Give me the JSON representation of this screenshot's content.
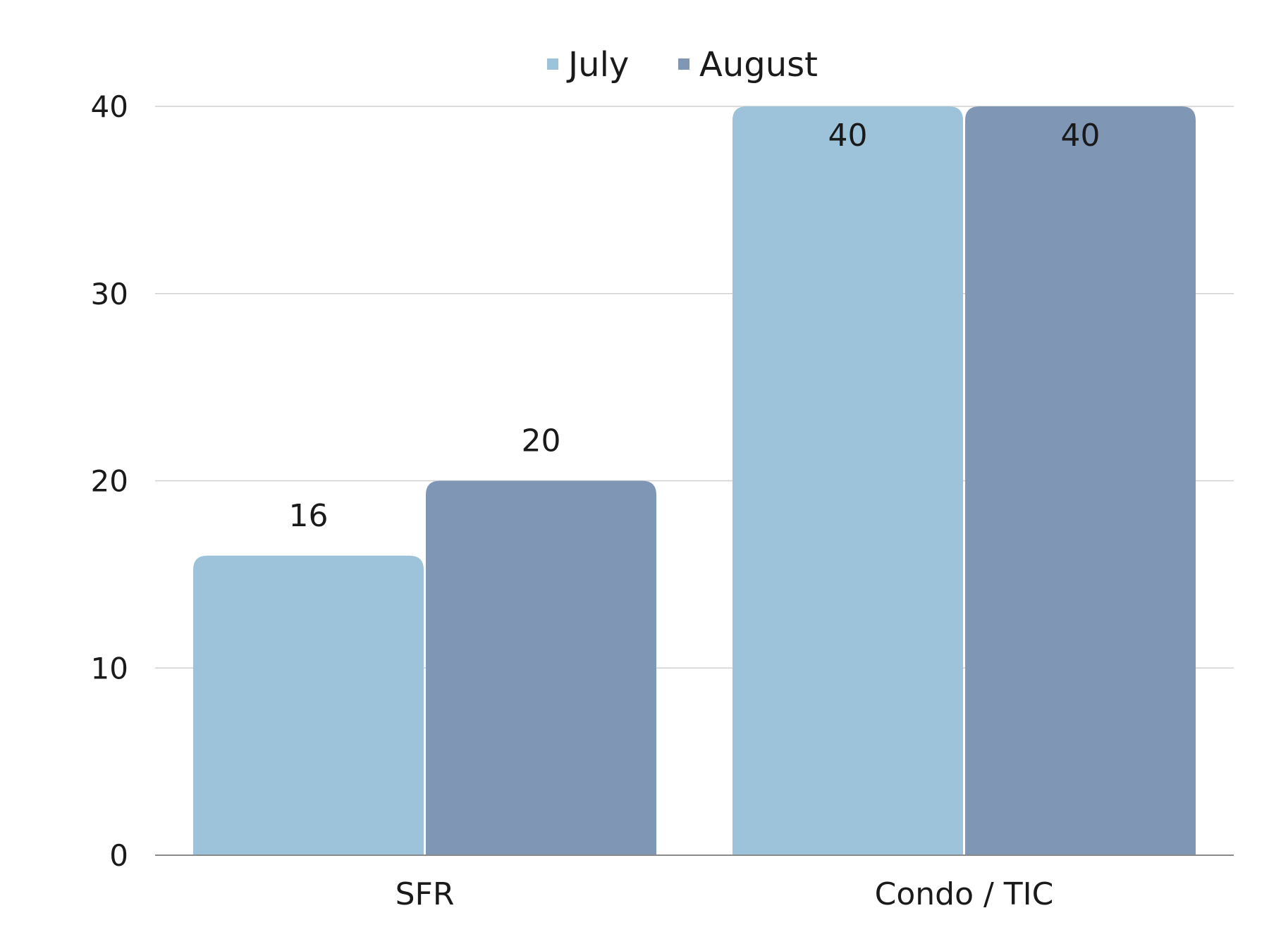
{
  "chart_data": {
    "type": "bar",
    "title": "",
    "xlabel": "",
    "ylabel": "",
    "categories": [
      "SFR",
      "Condo / TIC"
    ],
    "series": [
      {
        "name": "July",
        "values": [
          16,
          40
        ],
        "color": "#9cc3d9"
      },
      {
        "name": "August",
        "values": [
          20,
          40
        ],
        "color": "#7f97b4"
      }
    ],
    "ylim": [
      0,
      40
    ],
    "yticks": [
      0,
      10,
      20,
      30,
      40
    ],
    "data_labels": true,
    "grid": true,
    "legend_position": "top-center"
  }
}
